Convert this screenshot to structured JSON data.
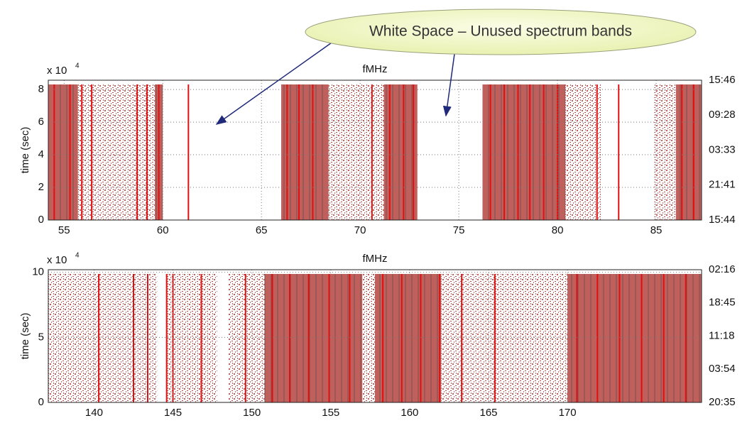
{
  "annotation": "White Space – Unused spectrum bands",
  "chart_data": [
    {
      "type": "occupancy",
      "title": "fMHz",
      "y_label": "time (sec)",
      "y_multiplier": {
        "base": "x 10",
        "exponent": "4"
      },
      "xlim": [
        54.2,
        87.3
      ],
      "xticks": [
        55,
        60,
        65,
        70,
        75,
        80,
        85
      ],
      "ylim": [
        0,
        8.57
      ],
      "yticks": [
        0,
        2,
        4,
        6,
        8
      ],
      "grid": true,
      "time_labels": [
        "15:46",
        "09:28",
        "03:33",
        "21:41",
        "15:44"
      ],
      "dense_color": "#c0605c",
      "carrier_color": "#e01010",
      "bands": [
        {
          "from": 54.2,
          "to": 55.7,
          "level": "dense"
        },
        {
          "from": 55.7,
          "to": 59.6,
          "level": "sparse"
        },
        {
          "from": 59.6,
          "to": 60.0,
          "level": "dense"
        },
        {
          "from": 66.0,
          "to": 68.4,
          "level": "dense"
        },
        {
          "from": 68.4,
          "to": 71.2,
          "level": "sparse"
        },
        {
          "from": 71.2,
          "to": 72.9,
          "level": "dense"
        },
        {
          "from": 76.2,
          "to": 80.4,
          "level": "dense"
        },
        {
          "from": 80.4,
          "to": 82.2,
          "level": "sparse"
        },
        {
          "from": 84.9,
          "to": 86.0,
          "level": "sparse"
        },
        {
          "from": 86.0,
          "to": 87.3,
          "level": "dense"
        }
      ],
      "carriers": [
        54.5,
        55.3,
        55.9,
        56.4,
        58.7,
        59.2,
        59.8,
        61.3,
        66.3,
        66.9,
        67.6,
        70.6,
        71.5,
        72.2,
        72.7,
        76.6,
        77.3,
        78.0,
        78.6,
        79.3,
        80.0,
        82.0,
        83.1,
        86.3,
        86.9
      ]
    },
    {
      "type": "occupancy",
      "title": "fMHz",
      "y_label": "time (sec)",
      "y_multiplier": {
        "base": "x 10",
        "exponent": "4"
      },
      "xlim": [
        137.1,
        178.5
      ],
      "xticks": [
        140,
        145,
        150,
        155,
        160,
        165,
        170
      ],
      "ylim": [
        0,
        10.2
      ],
      "yticks": [
        0,
        5,
        10
      ],
      "grid": true,
      "time_labels": [
        "02:16",
        "18:45",
        "11:18",
        "03:54",
        "20:35"
      ],
      "dense_color": "#c0605c",
      "carrier_color": "#e01010",
      "bands": [
        {
          "from": 137.1,
          "to": 144.0,
          "level": "sparse"
        },
        {
          "from": 144.6,
          "to": 147.8,
          "level": "sparse"
        },
        {
          "from": 148.5,
          "to": 150.8,
          "level": "sparse"
        },
        {
          "from": 150.8,
          "to": 157.0,
          "level": "dense"
        },
        {
          "from": 157.0,
          "to": 162.0,
          "level": "sparse"
        },
        {
          "from": 157.8,
          "to": 162.0,
          "level": "dense"
        },
        {
          "from": 162.0,
          "to": 166.2,
          "level": "sparse"
        },
        {
          "from": 166.2,
          "to": 170.0,
          "level": "sparse"
        },
        {
          "from": 170.0,
          "to": 178.5,
          "level": "dense"
        }
      ],
      "carriers": [
        140.3,
        142.5,
        143.4,
        144.6,
        145.0,
        146.8,
        149.6,
        151.3,
        152.4,
        153.6,
        154.9,
        156.2,
        158.3,
        159.5,
        160.7,
        161.9,
        163.3,
        165.4,
        170.6,
        171.9,
        173.3,
        174.7,
        176.1,
        177.5
      ]
    }
  ]
}
